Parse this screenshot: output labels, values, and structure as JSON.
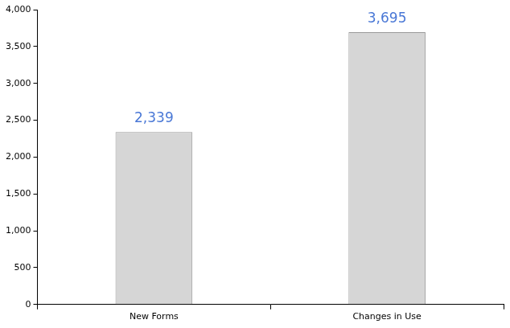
{
  "chart_data": {
    "type": "bar",
    "categories": [
      "New Forms",
      "Changes in Use"
    ],
    "values": [
      2339,
      3695
    ],
    "value_labels": [
      "2,339",
      "3,695"
    ],
    "data_labels": true,
    "color": "#d6d6d6",
    "ylim": [
      0,
      4000
    ],
    "yticks": [
      0,
      500,
      {
        "value": 1000,
        "label": "1,000"
      },
      {
        "value": 1500,
        "label": "1,500"
      },
      {
        "value": 2000,
        "label": "2,000"
      },
      {
        "value": 2500,
        "label": "2,500"
      },
      {
        "value": 3000,
        "label": "3,000"
      },
      {
        "value": 3500,
        "label": "3,500"
      },
      {
        "value": 4000,
        "label": "4,000"
      }
    ],
    "grid": false
  }
}
